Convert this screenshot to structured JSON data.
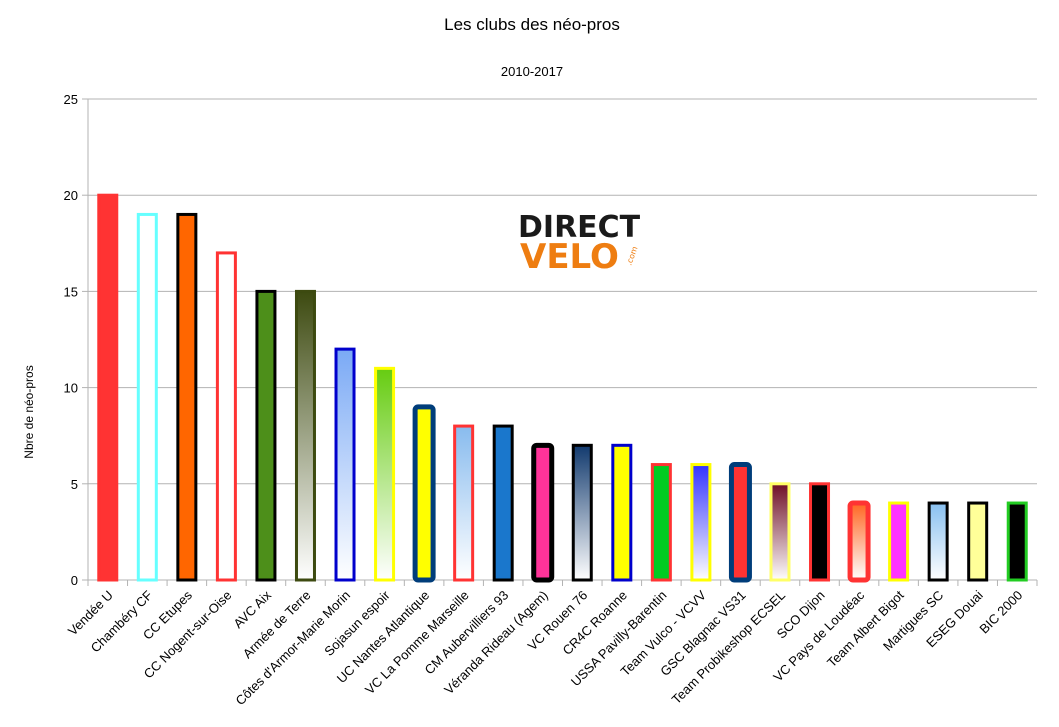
{
  "chart_data": {
    "type": "bar",
    "title": "Les clubs des néo-pros",
    "subtitle": "2010-2017",
    "ylabel": "Nbre de néo-pros",
    "xlabel": "",
    "ylim": [
      0,
      25
    ],
    "yticks": [
      0,
      5,
      10,
      15,
      20,
      25
    ],
    "grid": true,
    "legend": "none",
    "categories": [
      "Vendée U",
      "Chambéry CF",
      "CC Etupes",
      "CC Nogent-sur-Oise",
      "AVC Aix",
      "Armée de Terre",
      "Côtes d'Armor-Marie Morin",
      "Sojasun espoir",
      "UC Nantes Atlantique",
      "VC La Pomme Marseille",
      "CM Aubervilliers 93",
      "Véranda Rideau (Agem)",
      "VC Rouen 76",
      "CR4C Roanne",
      "USSA Pavilly-Barentin",
      "Team Vulco - VCVV",
      "GSC Blagnac VS31",
      "Team Probikeshop ECSEL",
      "SCO Dijon",
      "VC Pays de Loudéac",
      "Team Albert Bigot",
      "Martigues SC",
      "ESEG Douai",
      "BIC 2000"
    ],
    "values": [
      20,
      19,
      19,
      17,
      15,
      15,
      12,
      11,
      9,
      8,
      8,
      7,
      7,
      7,
      6,
      6,
      6,
      5,
      5,
      4,
      4,
      4,
      4,
      4
    ],
    "bar_styles": [
      {
        "fill": "#ff3333",
        "border": "#ff3333",
        "gradient": false,
        "thick": false
      },
      {
        "fill": "#ffffff",
        "border": "#66ffff",
        "gradient": false,
        "thick": false
      },
      {
        "fill": "#ff6600",
        "border": "#000000",
        "gradient": false,
        "thick": false
      },
      {
        "fill": "#ffffff",
        "border": "#ff3333",
        "gradient": false,
        "thick": false
      },
      {
        "fill": "#4d8f1a",
        "border": "#000000",
        "gradient": false,
        "thick": false
      },
      {
        "fill": "#3d4a10",
        "border": "#3d4a10",
        "gradient": true,
        "thick": false
      },
      {
        "fill": "#7aa9f5",
        "border": "#0000cc",
        "gradient": true,
        "thick": false
      },
      {
        "fill": "#66cc11",
        "border": "#ffff00",
        "gradient": true,
        "thick": false
      },
      {
        "fill": "#ffff00",
        "border": "#003d7a",
        "gradient": false,
        "thick": true
      },
      {
        "fill": "#88bbee",
        "border": "#ff3333",
        "gradient": true,
        "thick": false
      },
      {
        "fill": "#1a77cc",
        "border": "#000000",
        "gradient": false,
        "thick": false
      },
      {
        "fill": "#ff3399",
        "border": "#000000",
        "gradient": false,
        "thick": true
      },
      {
        "fill": "#123a6e",
        "border": "#000000",
        "gradient": true,
        "thick": false
      },
      {
        "fill": "#ffff00",
        "border": "#0000cc",
        "gradient": false,
        "thick": false
      },
      {
        "fill": "#00cc22",
        "border": "#ff3333",
        "gradient": false,
        "thick": false
      },
      {
        "fill": "#3333ff",
        "border": "#ffff00",
        "gradient": true,
        "thick": false
      },
      {
        "fill": "#ff3333",
        "border": "#003d7a",
        "gradient": false,
        "thick": true
      },
      {
        "fill": "#6e0e26",
        "border": "#ffff66",
        "gradient": true,
        "thick": false
      },
      {
        "fill": "#000000",
        "border": "#ff3333",
        "gradient": false,
        "thick": false
      },
      {
        "fill": "#ff6622",
        "border": "#ff3333",
        "gradient": true,
        "thick": true
      },
      {
        "fill": "#ff33ff",
        "border": "#ffff00",
        "gradient": false,
        "thick": false
      },
      {
        "fill": "#88c0f0",
        "border": "#000000",
        "gradient": true,
        "thick": false
      },
      {
        "fill": "#ffff99",
        "border": "#000000",
        "gradient": false,
        "thick": false
      },
      {
        "fill": "#000000",
        "border": "#22cc22",
        "gradient": false,
        "thick": false
      }
    ]
  },
  "logo": {
    "name": "directvelo-logo",
    "line1": "DIRECT",
    "line2": "VELO",
    "suffix": ".com"
  }
}
